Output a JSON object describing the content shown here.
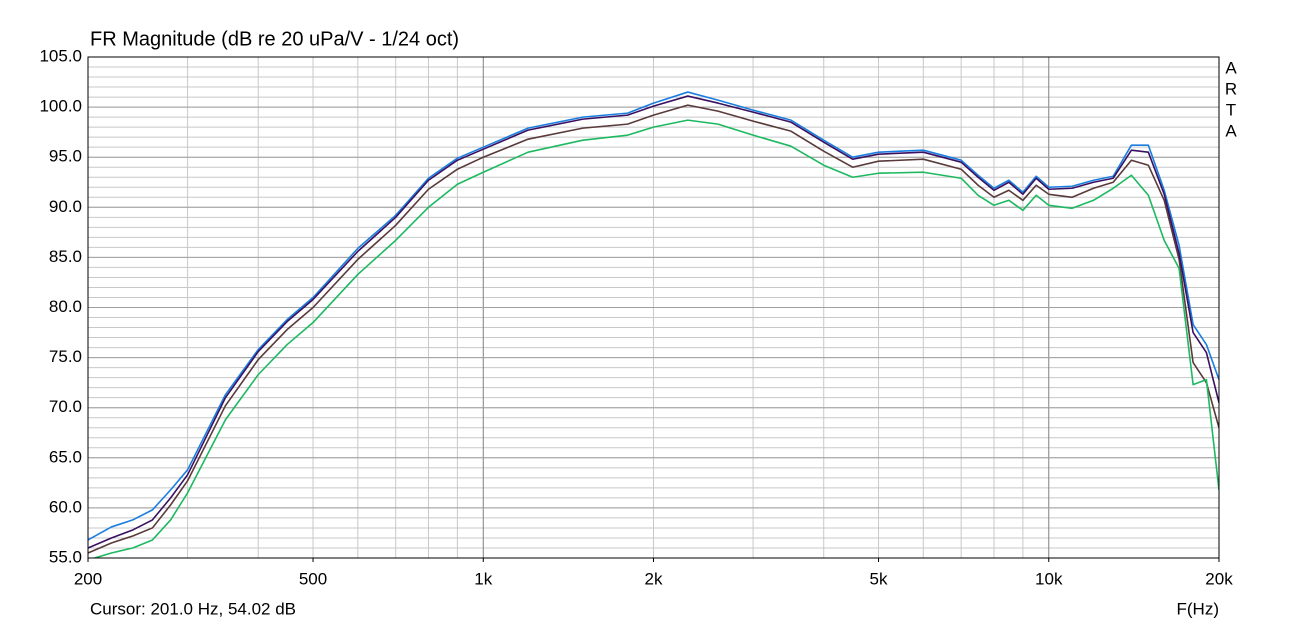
{
  "chart_data": {
    "type": "line",
    "title": "FR Magnitude (dB re 20 uPa/V - 1/24 oct)",
    "logo": [
      "A",
      "R",
      "T",
      "A"
    ],
    "cursor": "Cursor: 201.0 Hz, 54.02 dB",
    "xlabel": "F(Hz)",
    "xscale": "log",
    "grid": true,
    "xlim": [
      200,
      20000
    ],
    "ylim": [
      55,
      105
    ],
    "xticks": [
      200,
      500,
      {
        "value": 1000,
        "label": "1k"
      },
      {
        "value": 2000,
        "label": "2k"
      },
      {
        "value": 5000,
        "label": "5k"
      },
      {
        "value": 10000,
        "label": "10k"
      },
      {
        "value": 20000,
        "label": "20k"
      }
    ],
    "yticks": [
      {
        "value": 55,
        "label": "55.0"
      },
      {
        "value": 60,
        "label": "60.0"
      },
      {
        "value": 65,
        "label": "65.0"
      },
      {
        "value": 70,
        "label": "70.0"
      },
      {
        "value": 75,
        "label": "75.0"
      },
      {
        "value": 80,
        "label": "80.0"
      },
      {
        "value": 85,
        "label": "85.0"
      },
      {
        "value": 90,
        "label": "90.0"
      },
      {
        "value": 95,
        "label": "95.0"
      },
      {
        "value": 100,
        "label": "100.0"
      },
      {
        "value": 105,
        "label": "105.0"
      }
    ],
    "x": [
      200,
      220,
      240,
      260,
      280,
      300,
      350,
      400,
      450,
      500,
      600,
      700,
      800,
      900,
      1000,
      1200,
      1500,
      1800,
      2000,
      2300,
      2600,
      3000,
      3500,
      4000,
      4500,
      5000,
      6000,
      7000,
      7500,
      8000,
      8500,
      9000,
      9500,
      10000,
      11000,
      12000,
      13000,
      14000,
      15000,
      16000,
      17000,
      18000,
      19000,
      20000
    ],
    "series": [
      {
        "color": "#5a3a3a",
        "values": [
          55.5,
          56.5,
          57.2,
          58.0,
          60.3,
          62.7,
          70.2,
          74.8,
          77.8,
          80.0,
          84.8,
          88.2,
          91.8,
          93.8,
          95.0,
          96.8,
          97.9,
          98.3,
          99.2,
          100.2,
          99.6,
          98.6,
          97.6,
          95.6,
          94.0,
          94.6,
          94.8,
          93.8,
          92.2,
          91.0,
          91.7,
          90.7,
          92.2,
          91.3,
          91.0,
          91.9,
          92.5,
          94.7,
          94.2,
          90.7,
          84.8,
          74.5,
          72.5,
          68.0
        ]
      },
      {
        "color": "#1db960",
        "values": [
          54.8,
          55.5,
          56.0,
          56.8,
          58.8,
          61.5,
          68.8,
          73.3,
          76.3,
          78.5,
          83.3,
          86.7,
          90.0,
          92.3,
          93.5,
          95.5,
          96.7,
          97.2,
          98.0,
          98.7,
          98.3,
          97.2,
          96.1,
          94.2,
          93.0,
          93.4,
          93.5,
          92.9,
          91.2,
          90.2,
          90.7,
          89.7,
          91.2,
          90.2,
          89.9,
          90.7,
          91.9,
          93.2,
          91.2,
          86.7,
          83.9,
          72.3,
          72.8,
          61.8
        ]
      },
      {
        "color": "#1a7ee0",
        "values": [
          56.8,
          58.1,
          58.8,
          59.8,
          61.8,
          63.8,
          71.3,
          75.8,
          78.8,
          81.0,
          85.9,
          89.2,
          92.9,
          94.9,
          96.0,
          97.9,
          99.0,
          99.4,
          100.4,
          101.5,
          100.7,
          99.7,
          98.7,
          96.7,
          95.0,
          95.5,
          95.7,
          94.7,
          93.2,
          91.9,
          92.7,
          91.5,
          93.1,
          92.0,
          92.1,
          92.7,
          93.1,
          96.2,
          96.2,
          91.7,
          86.2,
          78.3,
          76.3,
          72.8
        ]
      },
      {
        "color": "#3a1060",
        "values": [
          56.0,
          57.0,
          57.8,
          58.8,
          61.0,
          63.3,
          71.0,
          75.6,
          78.6,
          80.8,
          85.6,
          89.0,
          92.7,
          94.7,
          95.8,
          97.7,
          98.8,
          99.2,
          100.1,
          101.1,
          100.4,
          99.5,
          98.5,
          96.5,
          94.8,
          95.3,
          95.5,
          94.5,
          93.0,
          91.7,
          92.5,
          91.3,
          92.9,
          91.8,
          91.9,
          92.5,
          92.9,
          95.7,
          95.5,
          91.3,
          85.4,
          77.5,
          75.5,
          70.5
        ]
      }
    ]
  }
}
